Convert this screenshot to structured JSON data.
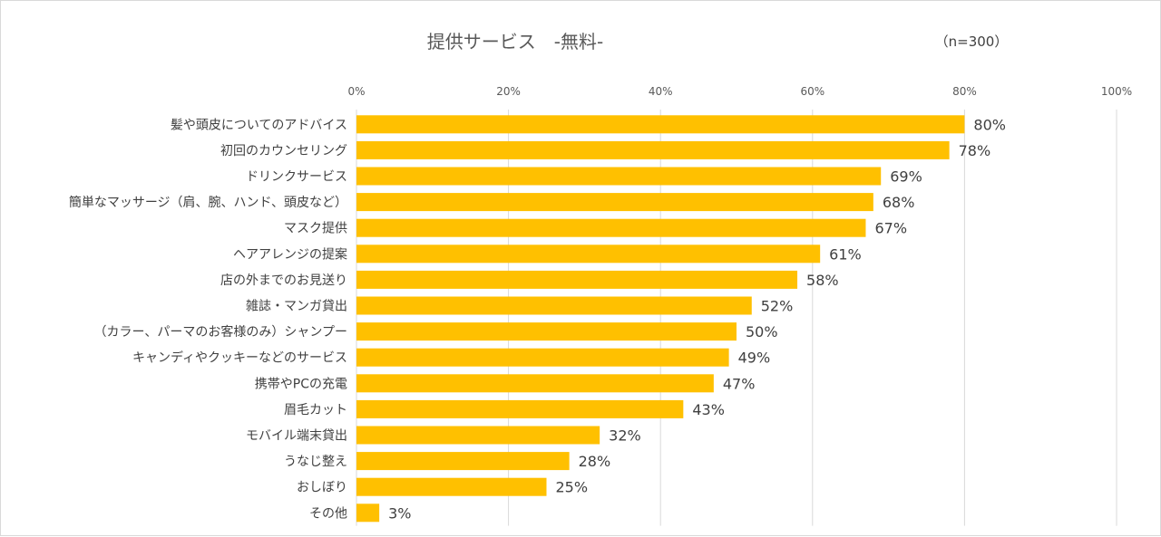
{
  "chart_data": {
    "type": "bar",
    "orientation": "horizontal",
    "title": "提供サービス　-無料-",
    "note": "（n=300）",
    "xlim": [
      0,
      100
    ],
    "x_ticks": [
      "0%",
      "20%",
      "40%",
      "60%",
      "80%",
      "100%"
    ],
    "x_tick_values": [
      0,
      20,
      40,
      60,
      80,
      100
    ],
    "grid": true,
    "legend": "none",
    "bar_color": "#FFC000",
    "categories": [
      "髪や頭皮についてのアドバイス",
      "初回のカウンセリング",
      "ドリンクサービス",
      "簡単なマッサージ（肩、腕、ハンド、頭皮など）",
      "マスク提供",
      "ヘアアレンジの提案",
      "店の外までのお見送り",
      "雑誌・マンガ貸出",
      "（カラー、パーマのお客様のみ）シャンプー",
      "キャンディやクッキーなどのサービス",
      "携帯やPCの充電",
      "眉毛カット",
      "モバイル端末貸出",
      "うなじ整え",
      "おしぼり",
      "その他"
    ],
    "values": [
      80,
      78,
      69,
      68,
      67,
      61,
      58,
      52,
      50,
      49,
      47,
      43,
      32,
      28,
      25,
      3
    ],
    "value_labels": [
      "80%",
      "78%",
      "69%",
      "68%",
      "67%",
      "61%",
      "58%",
      "52%",
      "50%",
      "49%",
      "47%",
      "43%",
      "32%",
      "28%",
      "25%",
      "3%"
    ]
  }
}
